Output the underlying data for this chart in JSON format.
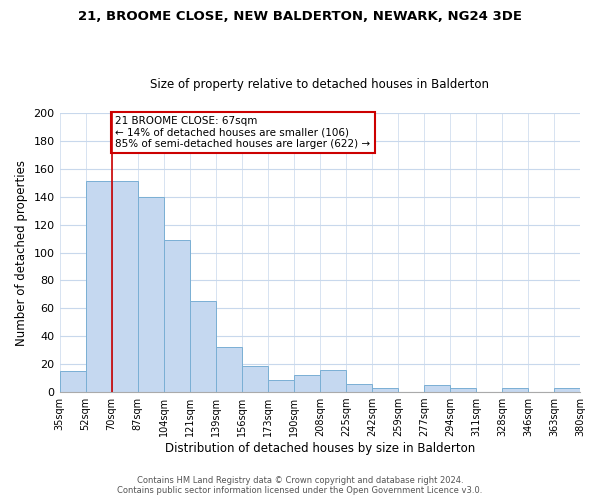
{
  "title1": "21, BROOME CLOSE, NEW BALDERTON, NEWARK, NG24 3DE",
  "title2": "Size of property relative to detached houses in Balderton",
  "xlabel": "Distribution of detached houses by size in Balderton",
  "ylabel": "Number of detached properties",
  "bin_labels": [
    "35sqm",
    "52sqm",
    "70sqm",
    "87sqm",
    "104sqm",
    "121sqm",
    "139sqm",
    "156sqm",
    "173sqm",
    "190sqm",
    "208sqm",
    "225sqm",
    "242sqm",
    "259sqm",
    "277sqm",
    "294sqm",
    "311sqm",
    "328sqm",
    "346sqm",
    "363sqm",
    "380sqm"
  ],
  "bin_values": [
    15,
    151,
    151,
    140,
    109,
    65,
    32,
    19,
    9,
    12,
    16,
    6,
    3,
    0,
    5,
    3,
    0,
    3,
    0,
    3
  ],
  "bar_color": "#c5d8f0",
  "bar_edge_color": "#7aafd4",
  "vline_x_index": 2,
  "vline_color": "#cc0000",
  "annotation_text": "21 BROOME CLOSE: 67sqm\n← 14% of detached houses are smaller (106)\n85% of semi-detached houses are larger (622) →",
  "annotation_box_color": "#ffffff",
  "annotation_box_edge": "#cc0000",
  "ylim": [
    0,
    200
  ],
  "yticks": [
    0,
    20,
    40,
    60,
    80,
    100,
    120,
    140,
    160,
    180,
    200
  ],
  "footer1": "Contains HM Land Registry data © Crown copyright and database right 2024.",
  "footer2": "Contains public sector information licensed under the Open Government Licence v3.0.",
  "background_color": "#ffffff",
  "grid_color": "#c8d8ec"
}
